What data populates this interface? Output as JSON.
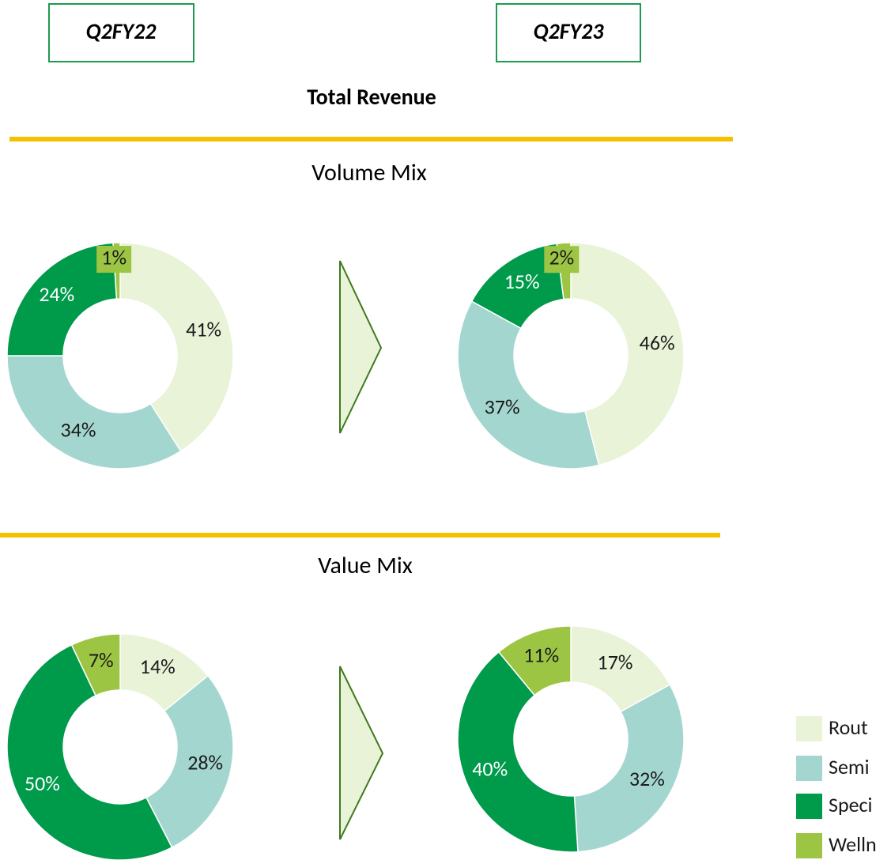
{
  "headers": [
    "Q2FY22",
    "Q2FY23"
  ],
  "title": "Total Revenue",
  "sections": [
    "Volume Mix",
    "Value Mix"
  ],
  "legend": {
    "labels": [
      "Rout",
      "Semi",
      "Speci",
      "Welln"
    ],
    "colors": [
      "#e8f3d7",
      "#a4d6d0",
      "#009a4b",
      "#9dc544"
    ]
  },
  "chart_data": [
    {
      "type": "donut",
      "values": [
        41,
        34,
        24,
        1
      ],
      "value_labels": [
        "41%",
        "34%",
        "24%",
        "1%"
      ]
    },
    {
      "type": "donut",
      "values": [
        46,
        37,
        15,
        2
      ],
      "value_labels": [
        "46%",
        "37%",
        "15%",
        "2%"
      ]
    },
    {
      "type": "donut",
      "values": [
        14,
        28,
        50,
        7
      ],
      "value_labels": [
        "14%",
        "28%",
        "50%",
        "7%"
      ]
    },
    {
      "type": "donut",
      "values": [
        17,
        32,
        40,
        11
      ],
      "value_labels": [
        "17%",
        "32%",
        "40%",
        "11%"
      ]
    }
  ]
}
